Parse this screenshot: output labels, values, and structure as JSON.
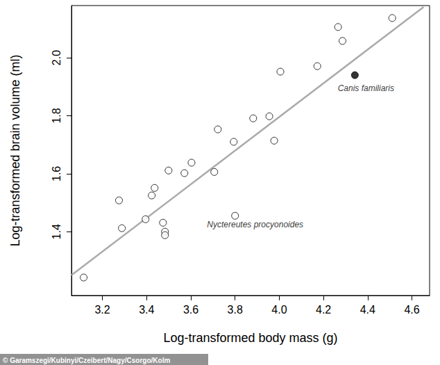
{
  "chart_data": {
    "type": "scatter",
    "x_label": "Log-transformed body mass (g)",
    "y_label": "Log-transformed brain volume (ml)",
    "source": "© Garamszegi/Kubinyi/Czeibert/Nagy/Csorgo/Kolm",
    "x": [
      3.115,
      3.275,
      3.288,
      3.395,
      3.423,
      3.436,
      3.474,
      3.483,
      3.483,
      3.499,
      3.571,
      3.603,
      3.706,
      3.722,
      3.794,
      3.8,
      3.882,
      3.955,
      3.977,
      4.005,
      4.172,
      4.266,
      4.286,
      4.511
    ],
    "y": [
      1.242,
      1.508,
      1.412,
      1.443,
      1.525,
      1.551,
      1.431,
      1.4,
      1.388,
      1.611,
      1.602,
      1.638,
      1.606,
      1.753,
      1.71,
      1.455,
      1.791,
      1.798,
      1.714,
      1.952,
      1.971,
      2.106,
      2.058,
      2.137
    ],
    "marker": "hollow",
    "color": "#000000",
    "highlight": {
      "x": 4.342,
      "y": 1.94,
      "label": "Canis familiaris",
      "marker": "filled",
      "color": "#000000"
    },
    "annotations": [
      {
        "text": "Nyctereutes procyonoides",
        "x": 3.8,
        "y": 1.455
      }
    ],
    "fit_line": {
      "x": [
        3.06,
        4.653
      ],
      "y": [
        1.25,
        2.175
      ],
      "color": "#aaaaaa"
    },
    "xlim": [
      3.06,
      4.68
    ],
    "ylim": [
      1.18,
      2.18
    ],
    "xticks": [
      3.2,
      3.4,
      3.6,
      3.8,
      {
        "value": 4,
        "label": "4.0"
      },
      4.2,
      4.4,
      4.6
    ],
    "yticks": [
      1.4,
      1.6,
      1.8,
      {
        "value": 2,
        "label": "2.0"
      }
    ],
    "grid": false
  }
}
